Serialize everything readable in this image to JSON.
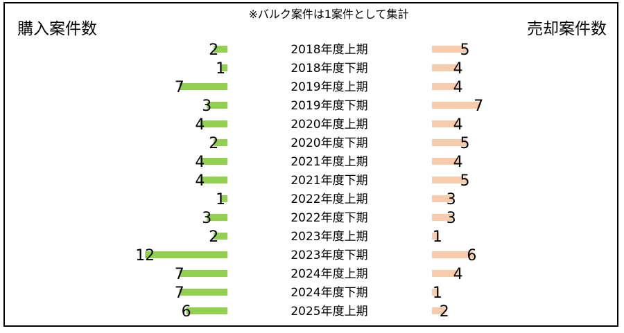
{
  "chart_data": {
    "type": "bar",
    "note": "※バルク案件は1案件として集計",
    "left_title": "購入案件数",
    "right_title": "売却案件数",
    "categories": [
      "2018年度上期",
      "2018年度下期",
      "2019年度上期",
      "2019年度下期",
      "2020年度上期",
      "2020年度下期",
      "2021年度上期",
      "2021年度下期",
      "2022年度上期",
      "2022年度下期",
      "2023年度上期",
      "2023年度下期",
      "2024年度上期",
      "2024年度下期",
      "2025年度上期"
    ],
    "series": [
      {
        "name": "購入案件数",
        "color": "#92d050",
        "values": [
          2,
          1,
          7,
          3,
          4,
          2,
          4,
          4,
          1,
          3,
          2,
          12,
          7,
          7,
          6
        ]
      },
      {
        "name": "売却案件数",
        "color": "#f8cbad",
        "values": [
          5,
          4,
          4,
          7,
          4,
          5,
          4,
          5,
          3,
          3,
          1,
          6,
          4,
          1,
          2
        ]
      }
    ]
  }
}
